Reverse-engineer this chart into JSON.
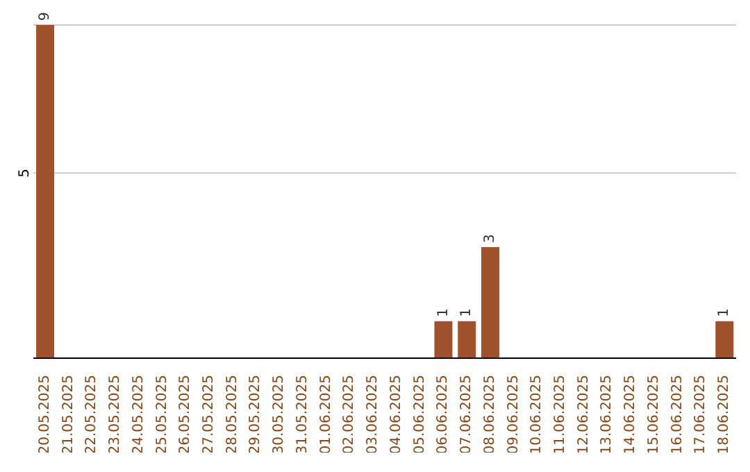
{
  "chart_data": {
    "type": "bar",
    "categories": [
      "20.05.2025",
      "21.05.2025",
      "22.05.2025",
      "23.05.2025",
      "24.05.2025",
      "25.05.2025",
      "26.05.2025",
      "27.05.2025",
      "28.05.2025",
      "29.05.2025",
      "30.05.2025",
      "31.05.2025",
      "01.06.2025",
      "02.06.2025",
      "03.06.2025",
      "04.06.2025",
      "05.06.2025",
      "06.06.2025",
      "07.06.2025",
      "08.06.2025",
      "09.06.2025",
      "10.06.2025",
      "11.06.2025",
      "12.06.2025",
      "13.06.2025",
      "14.06.2025",
      "15.06.2025",
      "16.06.2025",
      "17.06.2025",
      "18.06.2025"
    ],
    "values": [
      9,
      null,
      null,
      null,
      null,
      null,
      null,
      null,
      null,
      null,
      null,
      null,
      null,
      null,
      null,
      null,
      null,
      1,
      1,
      3,
      null,
      null,
      null,
      null,
      null,
      null,
      null,
      null,
      null,
      1
    ],
    "color": "#a0522d",
    "ylim": [
      0,
      9
    ],
    "yticks": [
      5
    ],
    "grid": "y",
    "data_labels": true
  }
}
